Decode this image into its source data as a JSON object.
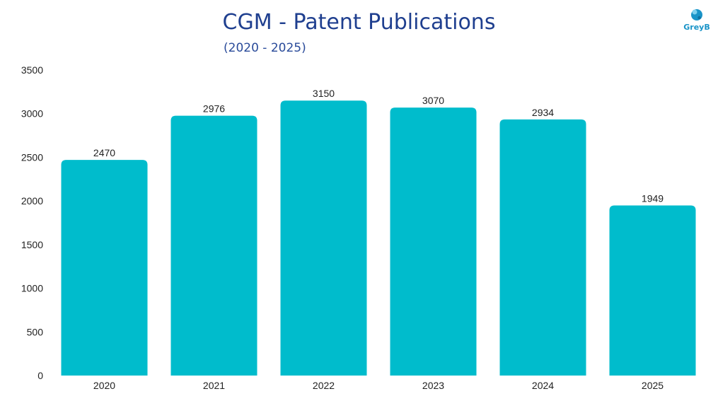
{
  "chart_data": {
    "type": "bar",
    "title": "CGM - Patent Publications",
    "subtitle": "(2020 - 2025)",
    "categories": [
      "2020",
      "2021",
      "2022",
      "2023",
      "2024",
      "2025"
    ],
    "values": [
      2470,
      2976,
      3150,
      3070,
      2934,
      1949
    ],
    "xlabel": "",
    "ylabel": "",
    "ylim": [
      0,
      3500
    ],
    "yticks": [
      0,
      500,
      1000,
      1500,
      2000,
      2500,
      3000,
      3500
    ],
    "grid": false,
    "bar_color": "#00bccc",
    "data_labels": true
  },
  "logo": {
    "text": "GreyB",
    "color": "#1a94c8"
  }
}
